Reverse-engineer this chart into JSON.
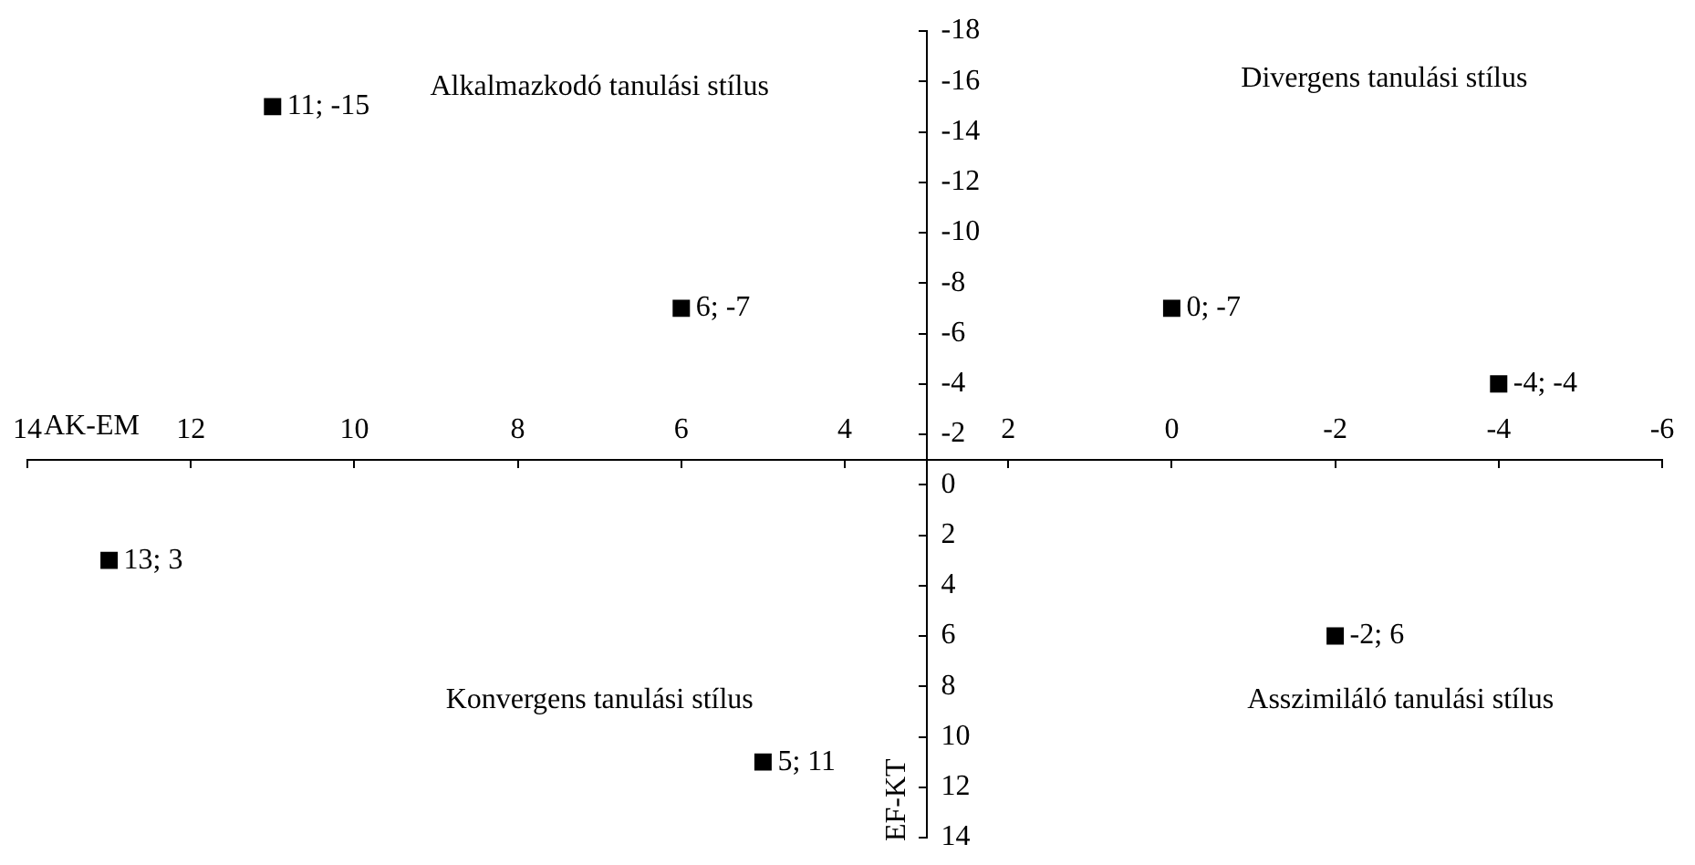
{
  "chart_data": {
    "type": "scatter",
    "xlabel": "AK-EM",
    "ylabel": "EF-KT",
    "annotations": [
      "Alkalmazkodó tanulási stílus",
      "Divergens tanulási stílus",
      "Konvergens tanulási stílus",
      "Asszimiláló tanulási stílus"
    ],
    "series": [
      {
        "color": "#000000",
        "x": [
          11,
          6,
          0,
          -4,
          13,
          -2,
          5
        ],
        "values": [
          -15,
          -7,
          -7,
          -4,
          3,
          6,
          11
        ],
        "value_labels": [
          "11; -15",
          "6; -7",
          "0; -7",
          "-4; -4",
          "13; 3",
          "-2; 6",
          "5; 11"
        ]
      }
    ],
    "xlim": [
      14,
      -6
    ],
    "xticks": [
      14,
      12,
      10,
      8,
      6,
      4,
      2,
      0,
      -2,
      -4,
      -6
    ],
    "ylim": [
      14,
      -18
    ],
    "yticks": [
      -18,
      -16,
      -14,
      -12,
      -10,
      -8,
      -6,
      -4,
      -2,
      0,
      2,
      4,
      6,
      8,
      10,
      12,
      14
    ],
    "grid": false,
    "legend": false,
    "marker": "square"
  }
}
